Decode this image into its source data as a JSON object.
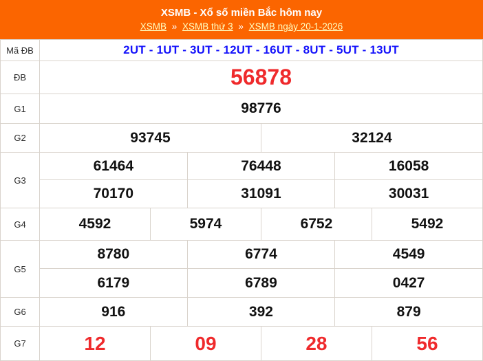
{
  "header": {
    "title": "XSMB - Xổ số miền Bắc hôm nay",
    "separator": "»",
    "breadcrumb": [
      "XSMB",
      "XSMB thứ 3",
      "XSMB ngày 20-1-2026"
    ]
  },
  "colors": {
    "banner_orange": "#FB6500",
    "accent_red": "#EF2A2C",
    "code_blue": "#1412FB",
    "link_yellow": "#FFFFC2",
    "cell_border": "#D9D3CC"
  },
  "table": {
    "rows": [
      {
        "key": "madb",
        "label": "Mã ĐB",
        "style": "code",
        "lines": [
          {
            "values": [
              "2UT - 1UT - 3UT - 12UT - 16UT - 8UT - 5UT - 13UT"
            ]
          }
        ]
      },
      {
        "key": "db",
        "label": "ĐB",
        "style": "special",
        "lines": [
          {
            "values": [
              "56878"
            ]
          }
        ]
      },
      {
        "key": "g1",
        "label": "G1",
        "style": "normal",
        "lines": [
          {
            "values": [
              "98776"
            ]
          }
        ]
      },
      {
        "key": "g2",
        "label": "G2",
        "style": "normal",
        "lines": [
          {
            "values": [
              "93745",
              "32124"
            ]
          }
        ]
      },
      {
        "key": "g3",
        "label": "G3",
        "style": "normal",
        "lines": [
          {
            "values": [
              "61464",
              "76448",
              "16058"
            ]
          },
          {
            "values": [
              "70170",
              "31091",
              "30031"
            ]
          }
        ]
      },
      {
        "key": "g4",
        "label": "G4",
        "style": "normal",
        "lines": [
          {
            "values": [
              "4592",
              "5974",
              "6752",
              "5492"
            ]
          }
        ]
      },
      {
        "key": "g5",
        "label": "G5",
        "style": "normal",
        "lines": [
          {
            "values": [
              "8780",
              "6774",
              "4549"
            ]
          },
          {
            "values": [
              "6179",
              "6789",
              "0427"
            ]
          }
        ]
      },
      {
        "key": "g6",
        "label": "G6",
        "style": "normal",
        "lines": [
          {
            "values": [
              "916",
              "392",
              "879"
            ]
          }
        ]
      },
      {
        "key": "g7",
        "label": "G7",
        "style": "accent",
        "lines": [
          {
            "values": [
              "12",
              "09",
              "28",
              "56"
            ]
          }
        ]
      }
    ]
  }
}
